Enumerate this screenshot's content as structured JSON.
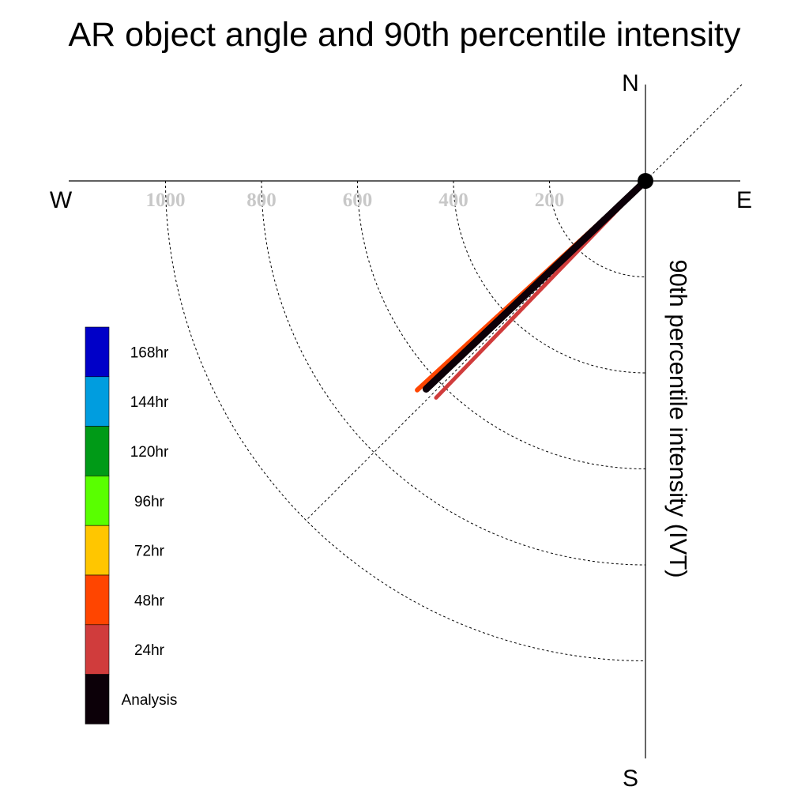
{
  "chart_data": {
    "type": "polar-vector",
    "title": "AR object angle and 90th percentile intensity",
    "axis_label": "90th percentile intensity (IVT)",
    "compass": {
      "north": "N",
      "south": "S",
      "east": "E",
      "west": "W"
    },
    "radial_ticks": [
      200,
      400,
      600,
      800,
      1000
    ],
    "radial_max": 1000,
    "grid": true,
    "legend_position": "left",
    "legend": [
      {
        "label": "168hr",
        "color": "#0000c8"
      },
      {
        "label": "144hr",
        "color": "#009ddf"
      },
      {
        "label": "120hr",
        "color": "#009a17"
      },
      {
        "label": "96hr",
        "color": "#59ff00"
      },
      {
        "label": "72hr",
        "color": "#ffc600"
      },
      {
        "label": "48hr",
        "color": "#ff4500"
      },
      {
        "label": "24hr",
        "color": "#d03c3c"
      },
      {
        "label": "Analysis",
        "color": "#0c0008"
      }
    ],
    "series": [
      {
        "name": "48hr",
        "color": "#ff4500",
        "angle_deg": 227.5,
        "intensity": 645
      },
      {
        "name": "24hr",
        "color": "#d03c3c",
        "angle_deg": 224.0,
        "intensity": 628
      },
      {
        "name": "Analysis",
        "color": "#0c0008",
        "angle_deg": 226.5,
        "intensity": 630
      }
    ]
  }
}
